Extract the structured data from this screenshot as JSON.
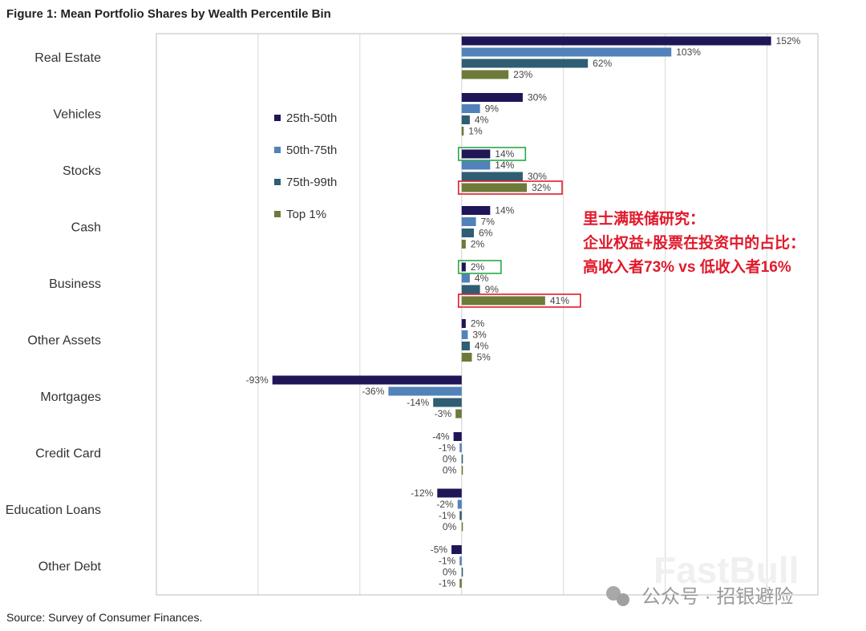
{
  "chart_data": {
    "type": "bar",
    "orientation": "horizontal",
    "title": "Figure 1: Mean Portfolio Shares by Wealth Percentile Bin",
    "source": "Source: Survey of Consumer Finances.",
    "categories": [
      "Real Estate",
      "Vehicles",
      "Stocks",
      "Cash",
      "Business",
      "Other Assets",
      "Mortgages",
      "Credit Card",
      "Education Loans",
      "Other Debt"
    ],
    "series": [
      {
        "name": "25th-50th",
        "color": "#1e1657",
        "values": [
          152,
          30,
          14,
          14,
          2,
          2,
          -93,
          -4,
          -12,
          -5
        ]
      },
      {
        "name": "50th-75th",
        "color": "#5182b9",
        "values": [
          103,
          9,
          14,
          7,
          4,
          3,
          -36,
          -1,
          -2,
          -1
        ]
      },
      {
        "name": "75th-99th",
        "color": "#2f5e73",
        "values": [
          62,
          4,
          30,
          6,
          9,
          4,
          -14,
          0,
          -1,
          0
        ]
      },
      {
        "name": "Top 1%",
        "color": "#6e7a3a",
        "values": [
          23,
          1,
          32,
          2,
          41,
          5,
          -3,
          0,
          0,
          -1
        ]
      }
    ],
    "xlim": [
      -150,
      175
    ],
    "gridlines_at": [
      -100,
      -50,
      0,
      50,
      100,
      150
    ],
    "legend_position": "upper-left-inside",
    "highlights": [
      {
        "category": "Stocks",
        "series": "25th-50th",
        "color": "#2aa84a"
      },
      {
        "category": "Business",
        "series": "25th-50th",
        "color": "#2aa84a"
      },
      {
        "category": "Stocks",
        "series": "Top 1%",
        "color": "#e0192a"
      },
      {
        "category": "Business",
        "series": "Top 1%",
        "color": "#e0192a"
      }
    ],
    "annotation": [
      "里士满联储研究：",
      "企业权益+股票在投资中的占比：",
      "高收入者73% vs 低收入者16%"
    ],
    "watermark": {
      "brand": "FastBull",
      "wechat": "公众号 · 招银避险"
    }
  }
}
